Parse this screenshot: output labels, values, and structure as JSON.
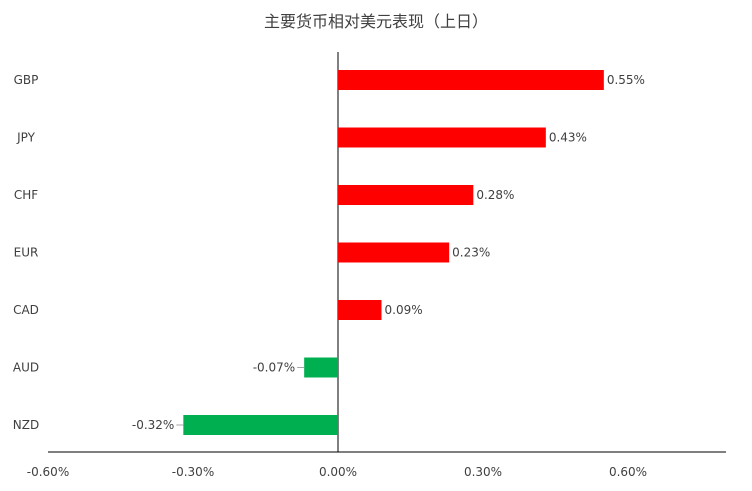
{
  "chart_data": {
    "type": "bar",
    "orientation": "horizontal",
    "title": "主要货币相对美元表现（上日）",
    "categories": [
      "GBP",
      "JPY",
      "CHF",
      "EUR",
      "CAD",
      "AUD",
      "NZD"
    ],
    "values": [
      0.55,
      0.43,
      0.28,
      0.23,
      0.09,
      -0.07,
      -0.32
    ],
    "data_labels": [
      "0.55%",
      "0.43%",
      "0.28%",
      "0.23%",
      "0.09%",
      "-0.07%",
      "-0.32%"
    ],
    "xlim": [
      -0.6,
      0.6
    ],
    "x_ticks": [
      -0.6,
      -0.3,
      0.0,
      0.3,
      0.6
    ],
    "x_tick_labels": [
      "-0.60%",
      "-0.30%",
      "0.00%",
      "0.30%",
      "0.60%"
    ],
    "xlabel": "",
    "ylabel": "",
    "grid": false,
    "legend": "none",
    "colors": {
      "positive": "#ff0000",
      "negative": "#00b050",
      "axis": "#000000",
      "text": "#404040"
    }
  }
}
